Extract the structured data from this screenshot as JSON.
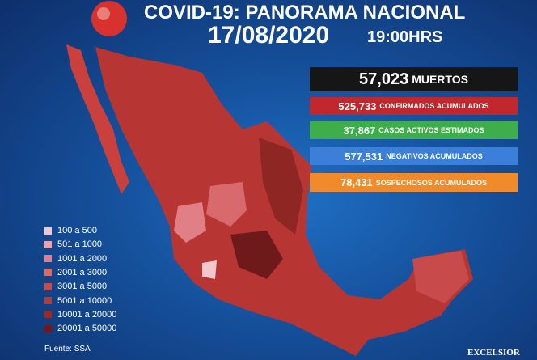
{
  "header": {
    "title": "COVID-19: PANORAMA NACIONAL",
    "date": "17/08/2020",
    "time": "19:00HRS"
  },
  "stats": [
    {
      "number": "57,023",
      "label": "MUERTOS"
    },
    {
      "number": "525,733",
      "label": "CONFIRMADOS ACUMULADOS"
    },
    {
      "number": "37,867",
      "label": "CASOS ACTIVOS ESTIMADOS"
    },
    {
      "number": "577,531",
      "label": "NEGATIVOS ACUMULADOS"
    },
    {
      "number": "78,431",
      "label": "SOSPECHOSOS ACUMULADOS"
    }
  ],
  "legend": [
    "100 a 500",
    "501 a 1000",
    "1001 a 2000",
    "2001 a 3000",
    "3001 a 5000",
    "5001 a 10000",
    "10001 a 20000",
    "20001 a 50000"
  ],
  "source": "Fuente: SSA",
  "brand": "EXCELSIOR"
}
